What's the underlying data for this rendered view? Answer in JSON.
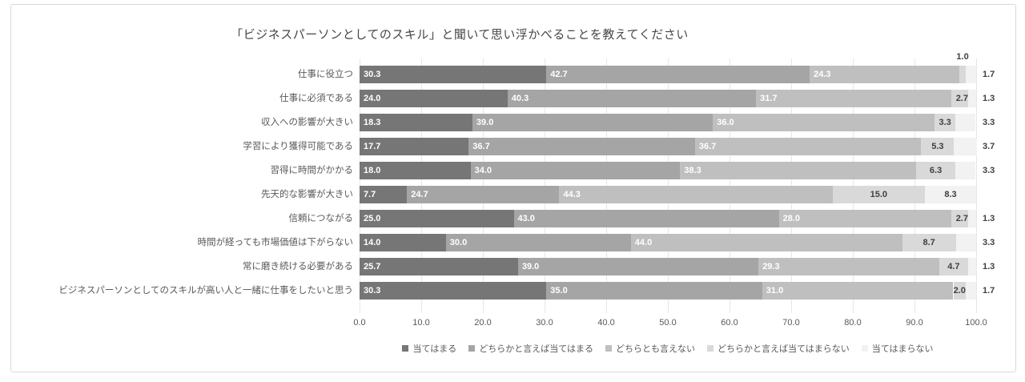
{
  "title": "「ビジネスパーソンとしてのスキル」と聞いて思い浮かべることを教えてください",
  "chart_data": {
    "type": "bar",
    "orientation": "horizontal-stacked",
    "title": "「ビジネスパーソンとしてのスキル」と聞いて思い浮かべることを教えてください",
    "categories": [
      "仕事に役立つ",
      "仕事に必須である",
      "収入への影響が大きい",
      "学習により獲得可能である",
      "習得に時間がかかる",
      "先天的な影響が大きい",
      "信頼につながる",
      "時間が経っても市場価値は下がらない",
      "常に磨き続ける必要がある",
      "ビジネスパーソンとしてのスキルが高い人と一緒に仕事をしたいと思う"
    ],
    "series": [
      {
        "name": "当てはまる",
        "color": "#767676",
        "values": [
          30.3,
          24.0,
          18.3,
          17.7,
          18.0,
          7.7,
          25.0,
          14.0,
          25.7,
          30.3
        ]
      },
      {
        "name": "どちらかと言えば当てはまる",
        "color": "#a5a5a5",
        "values": [
          42.7,
          40.3,
          39.0,
          36.7,
          34.0,
          24.7,
          43.0,
          30.0,
          39.0,
          35.0
        ]
      },
      {
        "name": "どちらとも言えない",
        "color": "#bfbfbf",
        "values": [
          24.3,
          31.7,
          36.0,
          36.7,
          38.3,
          44.3,
          28.0,
          44.0,
          29.3,
          31.0
        ]
      },
      {
        "name": "どちらかと言えば当てはまらない",
        "color": "#d9d9d9",
        "values": [
          1.0,
          2.7,
          3.3,
          5.3,
          6.3,
          15.0,
          2.7,
          8.7,
          4.7,
          2.0
        ]
      },
      {
        "name": "当てはまらない",
        "color": "#f2f2f2",
        "values": [
          1.7,
          1.3,
          3.3,
          3.7,
          3.3,
          8.3,
          1.3,
          3.3,
          1.3,
          1.7
        ]
      }
    ],
    "x_axis": {
      "min": 0,
      "max": 100,
      "tick_labels": [
        "0.0",
        "10.0",
        "20.0",
        "30.0",
        "40.0",
        "50.0",
        "60.0",
        "70.0",
        "80.0",
        "90.0",
        "100.0"
      ]
    },
    "grid": true,
    "legend_position": "bottom"
  }
}
